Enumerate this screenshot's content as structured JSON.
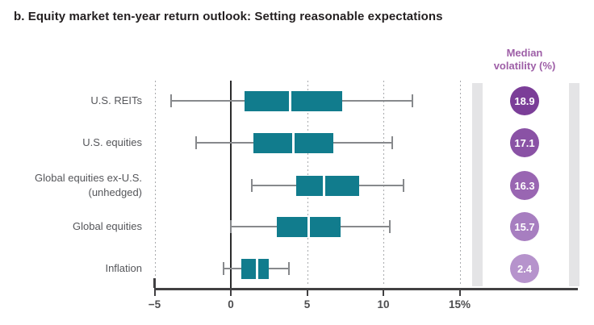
{
  "title": "b. Equity market ten-year return outlook: Setting reasonable expectations",
  "volatility_header": {
    "line1": "Median",
    "line2": "volatility (%)"
  },
  "chart_data": {
    "type": "boxplot",
    "title": "b. Equity market ten-year return outlook: Setting reasonable expectations",
    "orientation": "horizontal",
    "x_ticks": [
      -5,
      0,
      5,
      10,
      15
    ],
    "x_tick_labels": [
      "−5",
      "0",
      "5",
      "10",
      "15%"
    ],
    "xlim": [
      -5,
      16.5
    ],
    "grid": "dotted vertical gridlines at ticks, solid black line at 0",
    "legend_position": "none",
    "right_column_header": "Median volatility (%)",
    "series": [
      {
        "label_lines": [
          "U.S. REITs"
        ],
        "min": -3.9,
        "q1": 0.9,
        "median": 3.9,
        "q3": 7.3,
        "max": 11.9,
        "median_volatility": "18.9",
        "circle_color": "#7b3e98"
      },
      {
        "label_lines": [
          "U.S. equities"
        ],
        "min": -2.3,
        "q1": 1.5,
        "median": 4.1,
        "q3": 6.7,
        "max": 10.6,
        "median_volatility": "17.1",
        "circle_color": "#8a52a5"
      },
      {
        "label_lines": [
          "Global equities ex-U.S.",
          "(unhedged)"
        ],
        "min": 1.4,
        "q1": 4.3,
        "median": 6.1,
        "q3": 8.4,
        "max": 11.3,
        "median_volatility": "16.3",
        "circle_color": "#9966b2"
      },
      {
        "label_lines": [
          "Global equities"
        ],
        "min": 0.0,
        "q1": 3.0,
        "median": 5.1,
        "q3": 7.2,
        "max": 10.4,
        "median_volatility": "15.7",
        "circle_color": "#a77ec0"
      },
      {
        "label_lines": [
          "Inflation"
        ],
        "min": -0.5,
        "q1": 0.7,
        "median": 1.7,
        "q3": 2.5,
        "max": 3.8,
        "median_volatility": "2.4",
        "circle_color": "#b693cc"
      }
    ],
    "colors": {
      "box": "#117c8d",
      "median_line": "#ffffff",
      "whisker": "#87898c",
      "zero_line": "#2b2b2c",
      "gridline": "#a8aaad",
      "axis": "#414042",
      "side_bar": "#e4e4e6",
      "header_purple": "#9e5fa7"
    }
  }
}
